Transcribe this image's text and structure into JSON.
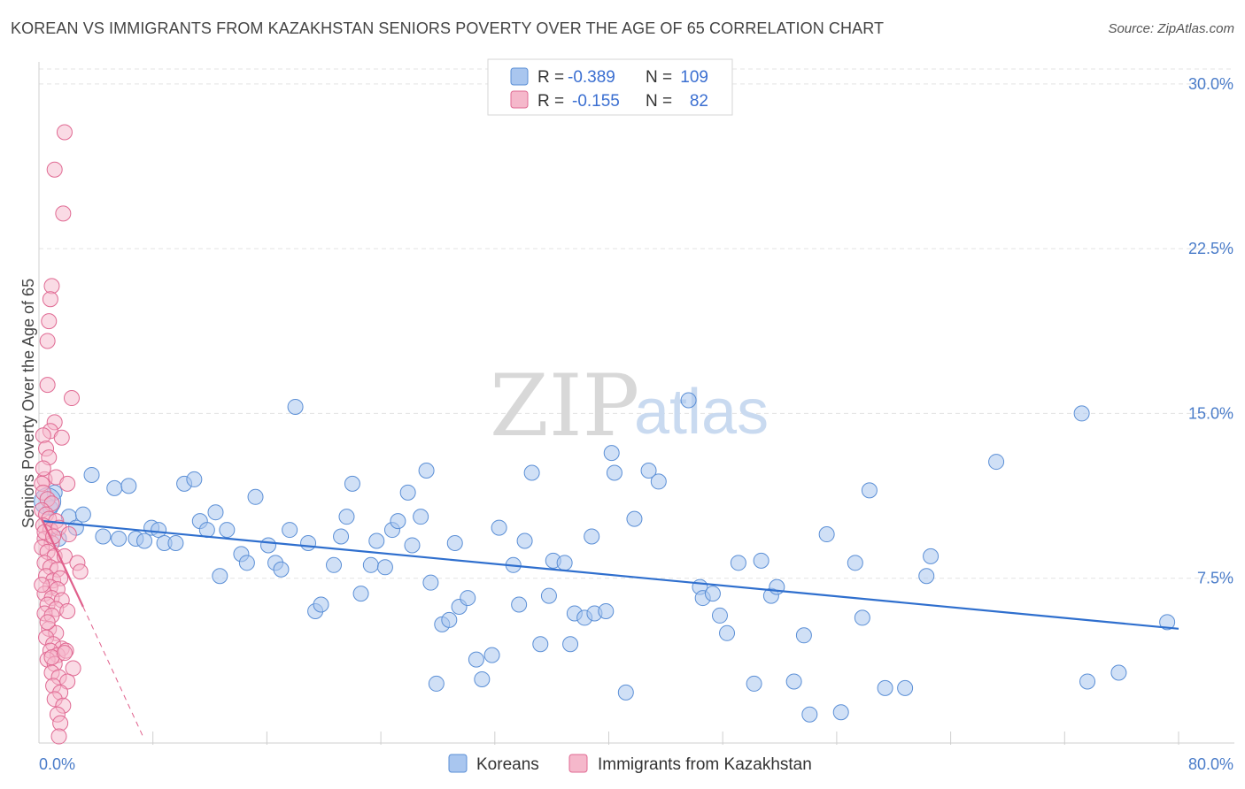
{
  "header": {
    "title": "KOREAN VS IMMIGRANTS FROM KAZAKHSTAN SENIORS POVERTY OVER THE AGE OF 65 CORRELATION CHART",
    "source": "Source: ZipAtlas.com"
  },
  "watermark": {
    "zip": "ZIP",
    "atlas": "atlas"
  },
  "colors": {
    "blue_fill": "#a9c6ef",
    "blue_stroke": "#5b8fd6",
    "blue_line": "#2f6fce",
    "pink_fill": "#f5b8cb",
    "pink_stroke": "#e06a93",
    "pink_line": "#e0608c",
    "axis_text": "#4a7cc9",
    "grid": "#e3e3e3"
  },
  "legend": {
    "rows": [
      {
        "r_label": "R = ",
        "r_value": "-0.389",
        "n_label": "N = ",
        "n_value": "109"
      },
      {
        "r_label": "R = ",
        "r_value": "-0.155",
        "n_label": "N = ",
        "n_value": "82"
      }
    ]
  },
  "bottom_legend": {
    "koreans": "Koreans",
    "kazakhstan": "Immigrants from Kazakhstan"
  },
  "chart_data": {
    "type": "scatter",
    "title": "KOREAN VS IMMIGRANTS FROM KAZAKHSTAN SENIORS POVERTY OVER THE AGE OF 65 CORRELATION CHART",
    "xlabel": "",
    "ylabel": "Seniors Poverty Over the Age of 65",
    "xlim": [
      0,
      80
    ],
    "ylim": [
      0,
      31
    ],
    "x_tick_labels": [
      "0.0%",
      "80.0%"
    ],
    "y_ticks": [
      7.5,
      15.0,
      22.5,
      30.0
    ],
    "y_tick_labels": [
      "7.5%",
      "15.0%",
      "22.5%",
      "30.0%"
    ],
    "grid": true,
    "series": [
      {
        "name": "Koreans",
        "R": -0.389,
        "N": 109,
        "trend": {
          "x": [
            0.3,
            80
          ],
          "y": [
            10.1,
            5.2
          ]
        },
        "points": [
          [
            0.8,
            10.7
          ],
          [
            1.1,
            11.4
          ],
          [
            1.4,
            9.3
          ],
          [
            2.1,
            10.3
          ],
          [
            2.6,
            9.8
          ],
          [
            3.1,
            10.4
          ],
          [
            3.7,
            12.2
          ],
          [
            4.5,
            9.4
          ],
          [
            5.3,
            11.6
          ],
          [
            5.6,
            9.3
          ],
          [
            6.3,
            11.7
          ],
          [
            6.8,
            9.3
          ],
          [
            7.4,
            9.2
          ],
          [
            7.9,
            9.8
          ],
          [
            8.4,
            9.7
          ],
          [
            8.8,
            9.1
          ],
          [
            9.6,
            9.1
          ],
          [
            10.2,
            11.8
          ],
          [
            10.9,
            12.0
          ],
          [
            11.3,
            10.1
          ],
          [
            11.8,
            9.7
          ],
          [
            12.4,
            10.5
          ],
          [
            12.7,
            7.6
          ],
          [
            13.2,
            9.7
          ],
          [
            14.2,
            8.6
          ],
          [
            14.6,
            8.2
          ],
          [
            15.2,
            11.2
          ],
          [
            16.1,
            9.0
          ],
          [
            16.6,
            8.2
          ],
          [
            17.0,
            7.9
          ],
          [
            17.6,
            9.7
          ],
          [
            18.0,
            15.3
          ],
          [
            18.9,
            9.1
          ],
          [
            19.4,
            6.0
          ],
          [
            19.8,
            6.3
          ],
          [
            20.7,
            8.1
          ],
          [
            21.2,
            9.4
          ],
          [
            21.6,
            10.3
          ],
          [
            22.0,
            11.8
          ],
          [
            22.6,
            6.8
          ],
          [
            23.3,
            8.1
          ],
          [
            23.7,
            9.2
          ],
          [
            24.3,
            8.0
          ],
          [
            24.8,
            9.7
          ],
          [
            25.2,
            10.1
          ],
          [
            25.9,
            11.4
          ],
          [
            26.2,
            9.0
          ],
          [
            26.8,
            10.3
          ],
          [
            27.2,
            12.4
          ],
          [
            27.5,
            7.3
          ],
          [
            27.9,
            2.7
          ],
          [
            28.3,
            5.4
          ],
          [
            28.8,
            5.6
          ],
          [
            29.2,
            9.1
          ],
          [
            29.5,
            6.2
          ],
          [
            30.1,
            6.6
          ],
          [
            30.7,
            3.8
          ],
          [
            31.1,
            2.9
          ],
          [
            31.8,
            4.0
          ],
          [
            32.3,
            9.8
          ],
          [
            33.3,
            8.1
          ],
          [
            33.7,
            6.3
          ],
          [
            34.1,
            9.2
          ],
          [
            34.6,
            12.3
          ],
          [
            35.2,
            4.5
          ],
          [
            35.8,
            6.7
          ],
          [
            36.1,
            8.3
          ],
          [
            36.9,
            8.2
          ],
          [
            37.3,
            4.5
          ],
          [
            37.6,
            5.9
          ],
          [
            38.3,
            5.7
          ],
          [
            38.8,
            9.4
          ],
          [
            39.0,
            5.9
          ],
          [
            39.8,
            6.0
          ],
          [
            40.2,
            13.2
          ],
          [
            40.4,
            12.3
          ],
          [
            41.2,
            2.3
          ],
          [
            41.8,
            10.2
          ],
          [
            42.8,
            12.4
          ],
          [
            43.5,
            11.9
          ],
          [
            45.6,
            15.6
          ],
          [
            46.4,
            7.1
          ],
          [
            46.6,
            6.6
          ],
          [
            47.3,
            6.8
          ],
          [
            47.8,
            5.8
          ],
          [
            48.3,
            5.0
          ],
          [
            49.1,
            8.2
          ],
          [
            50.2,
            2.7
          ],
          [
            50.7,
            8.3
          ],
          [
            51.4,
            6.7
          ],
          [
            51.8,
            7.1
          ],
          [
            53.0,
            2.8
          ],
          [
            53.7,
            4.9
          ],
          [
            54.1,
            1.3
          ],
          [
            55.3,
            9.5
          ],
          [
            56.3,
            1.4
          ],
          [
            57.3,
            8.2
          ],
          [
            57.8,
            5.7
          ],
          [
            58.3,
            11.5
          ],
          [
            59.4,
            2.5
          ],
          [
            60.8,
            2.5
          ],
          [
            62.3,
            7.6
          ],
          [
            62.6,
            8.5
          ],
          [
            67.2,
            12.8
          ],
          [
            73.2,
            15.0
          ],
          [
            73.6,
            2.8
          ],
          [
            75.8,
            3.2
          ],
          [
            79.2,
            5.5
          ],
          [
            0.6,
            11.0
          ]
        ]
      },
      {
        "name": "Immigrants from Kazakhstan",
        "R": -0.155,
        "N": 82,
        "trend": {
          "x": [
            0.2,
            3.1
          ],
          "y": [
            10.2,
            6.2
          ]
        },
        "trend_extension": {
          "x": [
            3.1,
            7.3
          ],
          "y": [
            6.2,
            0.3
          ]
        },
        "points": [
          [
            1.8,
            27.8
          ],
          [
            1.1,
            26.1
          ],
          [
            1.7,
            24.1
          ],
          [
            0.9,
            20.8
          ],
          [
            0.8,
            20.2
          ],
          [
            0.7,
            19.2
          ],
          [
            0.6,
            18.3
          ],
          [
            0.6,
            16.3
          ],
          [
            2.3,
            15.7
          ],
          [
            1.1,
            14.6
          ],
          [
            0.8,
            14.2
          ],
          [
            0.3,
            14.0
          ],
          [
            1.6,
            13.9
          ],
          [
            0.5,
            13.4
          ],
          [
            0.4,
            12.0
          ],
          [
            0.2,
            11.8
          ],
          [
            1.2,
            12.1
          ],
          [
            2.0,
            11.8
          ],
          [
            0.3,
            11.4
          ],
          [
            0.6,
            11.1
          ],
          [
            0.9,
            10.9
          ],
          [
            0.2,
            10.6
          ],
          [
            0.5,
            10.4
          ],
          [
            0.7,
            10.2
          ],
          [
            1.2,
            10.1
          ],
          [
            0.3,
            9.9
          ],
          [
            0.8,
            9.7
          ],
          [
            1.4,
            9.8
          ],
          [
            2.1,
            9.5
          ],
          [
            0.4,
            9.3
          ],
          [
            0.9,
            9.1
          ],
          [
            0.2,
            8.9
          ],
          [
            0.6,
            8.7
          ],
          [
            1.1,
            8.5
          ],
          [
            1.8,
            8.5
          ],
          [
            0.4,
            8.2
          ],
          [
            0.8,
            8.0
          ],
          [
            1.3,
            7.9
          ],
          [
            2.7,
            8.2
          ],
          [
            2.9,
            7.8
          ],
          [
            0.5,
            7.6
          ],
          [
            1.0,
            7.4
          ],
          [
            1.5,
            7.5
          ],
          [
            0.8,
            7.1
          ],
          [
            1.3,
            7.0
          ],
          [
            0.4,
            6.8
          ],
          [
            0.9,
            6.6
          ],
          [
            1.6,
            6.5
          ],
          [
            0.6,
            6.3
          ],
          [
            1.2,
            6.1
          ],
          [
            0.4,
            5.9
          ],
          [
            0.9,
            5.8
          ],
          [
            2.0,
            6.0
          ],
          [
            0.7,
            5.2
          ],
          [
            1.2,
            5.0
          ],
          [
            0.5,
            4.8
          ],
          [
            1.0,
            4.5
          ],
          [
            1.6,
            4.3
          ],
          [
            0.8,
            4.2
          ],
          [
            1.3,
            4.0
          ],
          [
            1.9,
            4.2
          ],
          [
            0.6,
            3.8
          ],
          [
            1.1,
            3.6
          ],
          [
            2.4,
            3.4
          ],
          [
            0.9,
            3.2
          ],
          [
            1.4,
            3.0
          ],
          [
            2.0,
            2.8
          ],
          [
            1.0,
            2.6
          ],
          [
            1.5,
            2.3
          ],
          [
            1.1,
            2.0
          ],
          [
            1.7,
            1.7
          ],
          [
            1.3,
            1.3
          ],
          [
            1.5,
            0.9
          ],
          [
            1.4,
            0.3
          ],
          [
            0.4,
            9.6
          ],
          [
            0.2,
            7.2
          ],
          [
            0.6,
            5.5
          ],
          [
            0.9,
            3.9
          ],
          [
            1.8,
            4.1
          ],
          [
            0.7,
            13.0
          ],
          [
            1.0,
            9.4
          ],
          [
            0.3,
            12.5
          ]
        ]
      }
    ]
  }
}
